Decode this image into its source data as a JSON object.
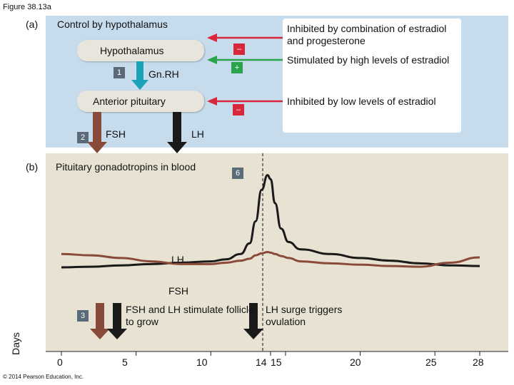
{
  "figure_label": "Figure 38.13a",
  "panel_a": {
    "letter": "(a)",
    "title": "Control by hypothalamus",
    "hypothalamus": "Hypothalamus",
    "gnrh": "Gn.RH",
    "anterior_pituitary": "Anterior pituitary",
    "fsh": "FSH",
    "lh": "LH",
    "step1": "1",
    "step2": "2",
    "sign_minus_1": "–",
    "sign_plus": "+",
    "sign_minus_2": "–",
    "note_inhibited_combo": "Inhibited by combination of estradiol and progesterone",
    "note_stimulated": "Stimulated by high levels of estradiol",
    "note_inhibited_low": "Inhibited by low levels of estradiol",
    "colors": {
      "inhibit": "#d8263a",
      "stimulate": "#2ba34a",
      "gnrh_arrow": "#1aa3b8",
      "fsh_arrow": "#8a4a3a",
      "lh_arrow": "#1a1a1a"
    }
  },
  "panel_b": {
    "letter": "(b)",
    "title": "Pituitary gonadotropins in blood",
    "step6": "6",
    "step3": "3",
    "lh_label": "LH",
    "fsh_label": "FSH",
    "note_stimulate": "FSH and LH stimulate follicle to grow",
    "note_surge": "LH surge triggers ovulation",
    "axis_label": "Days",
    "ticks": [
      "0",
      "5",
      "10",
      "14",
      "15",
      "20",
      "25",
      "28"
    ]
  },
  "copyright": "© 2014 Pearson Education, Inc.",
  "chart_data": {
    "type": "line",
    "x": [
      0,
      2,
      4,
      6,
      8,
      10,
      11,
      12,
      12.6,
      13,
      13.4,
      13.8,
      14,
      14.3,
      14.7,
      15.2,
      16,
      18,
      20,
      22,
      24,
      26,
      28
    ],
    "series": [
      {
        "name": "LH",
        "values": [
          1.6,
          1.7,
          1.9,
          2.1,
          2.3,
          2.5,
          2.8,
          3.6,
          5.2,
          8.5,
          13.2,
          15.4,
          14.8,
          11.2,
          7.4,
          5.4,
          4.3,
          3.6,
          3.0,
          2.6,
          2.2,
          1.9,
          1.8
        ]
      },
      {
        "name": "FSH",
        "values": [
          3.6,
          3.4,
          3.0,
          2.5,
          2.1,
          2.1,
          2.3,
          2.6,
          2.9,
          3.4,
          3.7,
          3.9,
          3.8,
          3.6,
          3.3,
          3.0,
          2.5,
          2.2,
          2.0,
          1.8,
          1.7,
          2.3,
          3.1
        ]
      }
    ],
    "xlabel": "Days",
    "xlim": [
      0,
      28
    ],
    "ylim": [
      0,
      16
    ],
    "annotations": [
      "LH surge triggers ovulation",
      "FSH and LH stimulate follicle to grow"
    ],
    "colors": {
      "LH": "#1a1a1a",
      "FSH": "#8a4a3a"
    }
  }
}
